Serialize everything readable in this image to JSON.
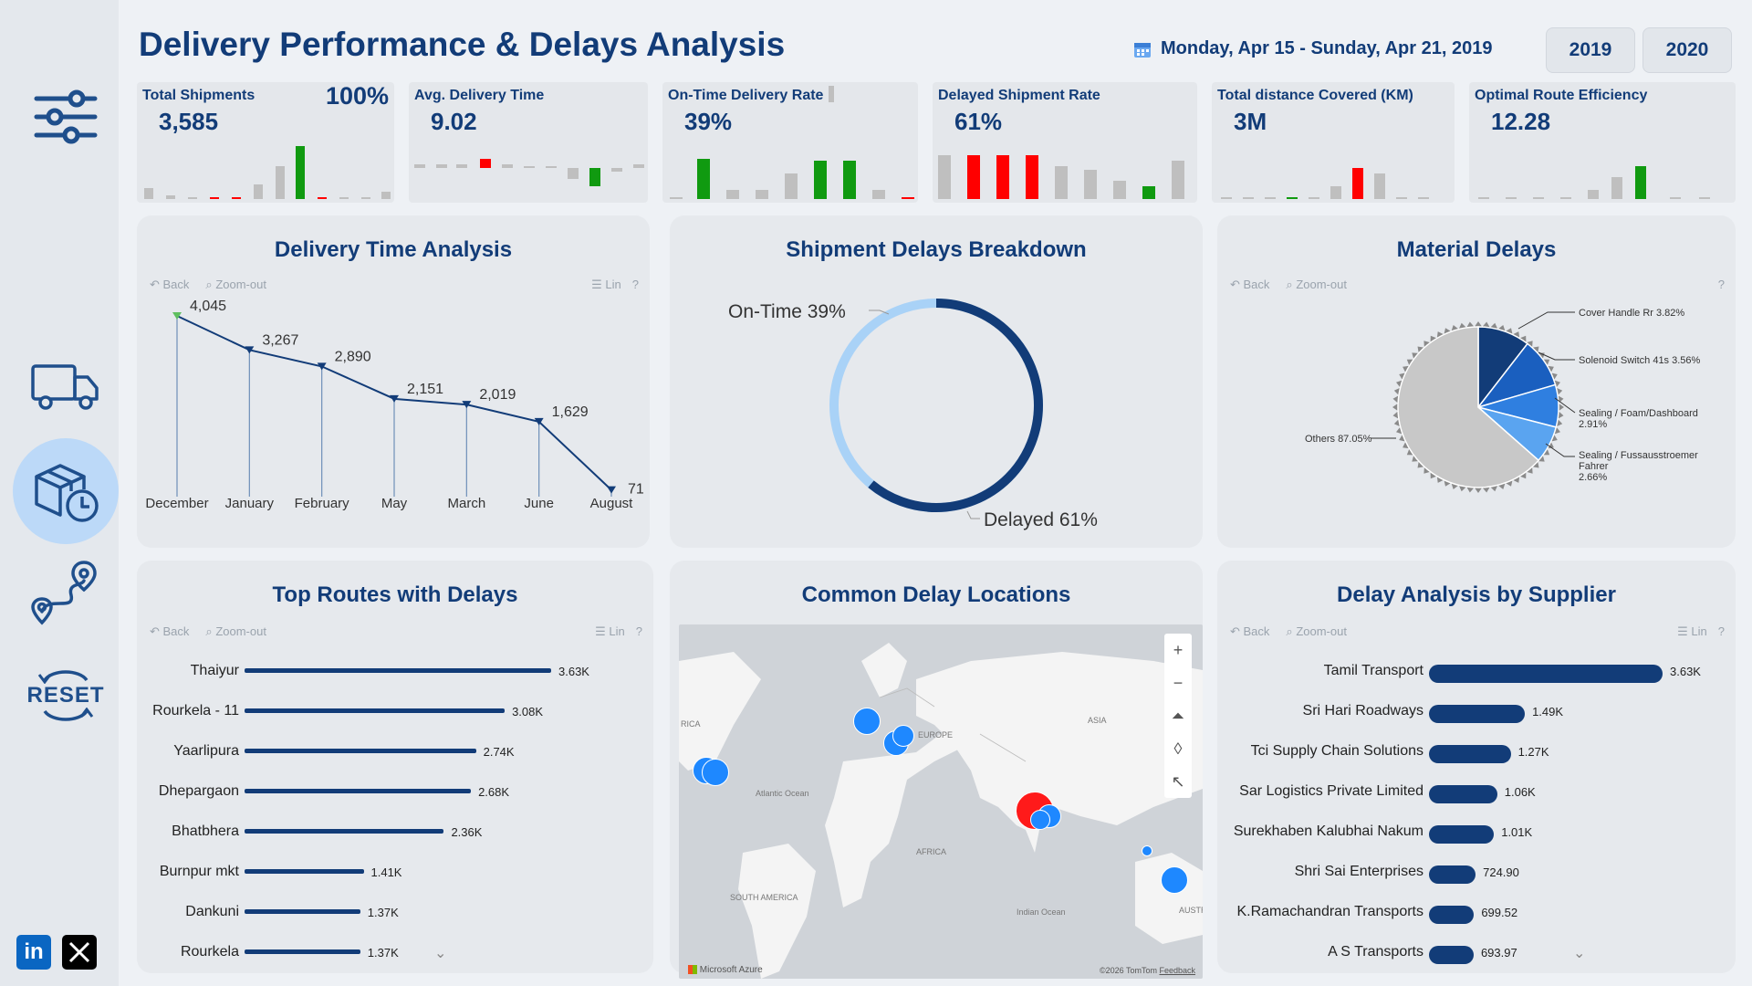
{
  "title": "Delivery Performance & Delays Analysis",
  "date_range": "Monday, Apr 15 - Sunday, Apr 21, 2019",
  "years": [
    "2019",
    "2020"
  ],
  "colors": {
    "navy": "#123c78",
    "red": "#ff0000",
    "green": "#109a10",
    "grey": "#bfbfbf",
    "light_blue": "#a9d2f7"
  },
  "sidebar": {
    "reset_label": "RESET",
    "icons": [
      "filter-sliders-icon",
      "truck-icon",
      "package-clock-icon",
      "route-pin-icon",
      "reset-icon"
    ],
    "social": [
      "in"
    ]
  },
  "kpis": [
    {
      "label": "Total Shipments",
      "value": "3,585",
      "extra": "100%"
    },
    {
      "label": "Avg. Delivery Time",
      "value": "9.02"
    },
    {
      "label": "On-Time Delivery Rate",
      "value": "39%"
    },
    {
      "label": "Delayed Shipment Rate",
      "value": "61%"
    },
    {
      "label": "Total distance Covered (KM)",
      "value": "3M"
    },
    {
      "label": "Optimal Route Efficiency",
      "value": "12.28"
    }
  ],
  "toolbar": {
    "back": "Back",
    "zoom_out": "Zoom-out",
    "lin": "Lin",
    "help": "?"
  },
  "delivery_time": {
    "title": "Delivery Time Analysis",
    "chart_data": {
      "type": "line",
      "categories": [
        "December",
        "January",
        "February",
        "May",
        "March",
        "June",
        "August"
      ],
      "values": [
        4045,
        3267,
        2890,
        2151,
        2019,
        1629,
        71
      ],
      "labels": [
        "4,045",
        "3,267",
        "2,890",
        "2,151",
        "2,019",
        "1,629",
        "71"
      ]
    }
  },
  "shipment_delays": {
    "title": "Shipment Delays Breakdown",
    "chart_data": {
      "type": "pie",
      "categories": [
        "On-Time",
        "Delayed"
      ],
      "values": [
        39,
        61
      ],
      "labels": [
        "On-Time 39%",
        "Delayed 61%"
      ]
    }
  },
  "material_delays": {
    "title": "Material Delays",
    "chart_data": {
      "type": "pie",
      "categories": [
        "Cover Handle Rr",
        "Solenoid Switch 41s",
        "Sealing / Foam/Dashboard",
        "Sealing / Fussausstroemer Fahrer",
        "Others"
      ],
      "values": [
        3.82,
        3.56,
        2.91,
        2.66,
        87.05
      ],
      "labels": [
        "Cover Handle Rr 3.82%",
        "Solenoid Switch 41s 3.56%",
        "Sealing / Foam/Dashboard",
        "2.91%",
        "Sealing / Fussausstroemer",
        "Fahrer",
        "2.66%",
        "Others 87.05%"
      ]
    }
  },
  "top_routes": {
    "title": "Top Routes with Delays",
    "chart_data": {
      "type": "bar",
      "categories": [
        "Thaiyur",
        "Rourkela - 11",
        "Yaarlipura",
        "Dhepargaon",
        "Bhatbhera",
        "Burnpur mkt",
        "Dankuni",
        "Rourkela"
      ],
      "values": [
        3630,
        3080,
        2740,
        2680,
        2360,
        1410,
        1370,
        1370
      ],
      "labels": [
        "3.63K",
        "3.08K",
        "2.74K",
        "2.68K",
        "2.36K",
        "1.41K",
        "1.37K",
        "1.37K"
      ]
    }
  },
  "delay_locations": {
    "title": "Common Delay Locations",
    "labels": {
      "europe": "EUROPE",
      "asia": "ASIA",
      "africa": "AFRICA",
      "atlantic": "Atlantic Ocean",
      "south_america": "SOUTH AMERICA",
      "indian": "Indian Ocean",
      "australia": "AUSTRALIA",
      "rica": "RICA"
    },
    "attribution": "Microsoft Azure",
    "copyright": "©2026 TomTom",
    "feedback": "Feedback"
  },
  "supplier_delays": {
    "title": "Delay Analysis by Supplier",
    "chart_data": {
      "type": "bar",
      "categories": [
        "Tamil Transport",
        "Sri Hari Roadways",
        "Tci Supply Chain Solutions",
        "Sar Logistics Private Limited",
        "Surekhaben Kalubhai Nakum",
        "Shri Sai Enterprises",
        "K.Ramachandran Transports",
        "A S Transports"
      ],
      "values": [
        3630,
        1490,
        1270,
        1060,
        1010,
        724.9,
        699.52,
        693.97
      ],
      "labels": [
        "3.63K",
        "1.49K",
        "1.27K",
        "1.06K",
        "1.01K",
        "724.90",
        "699.52",
        "693.97"
      ]
    }
  }
}
